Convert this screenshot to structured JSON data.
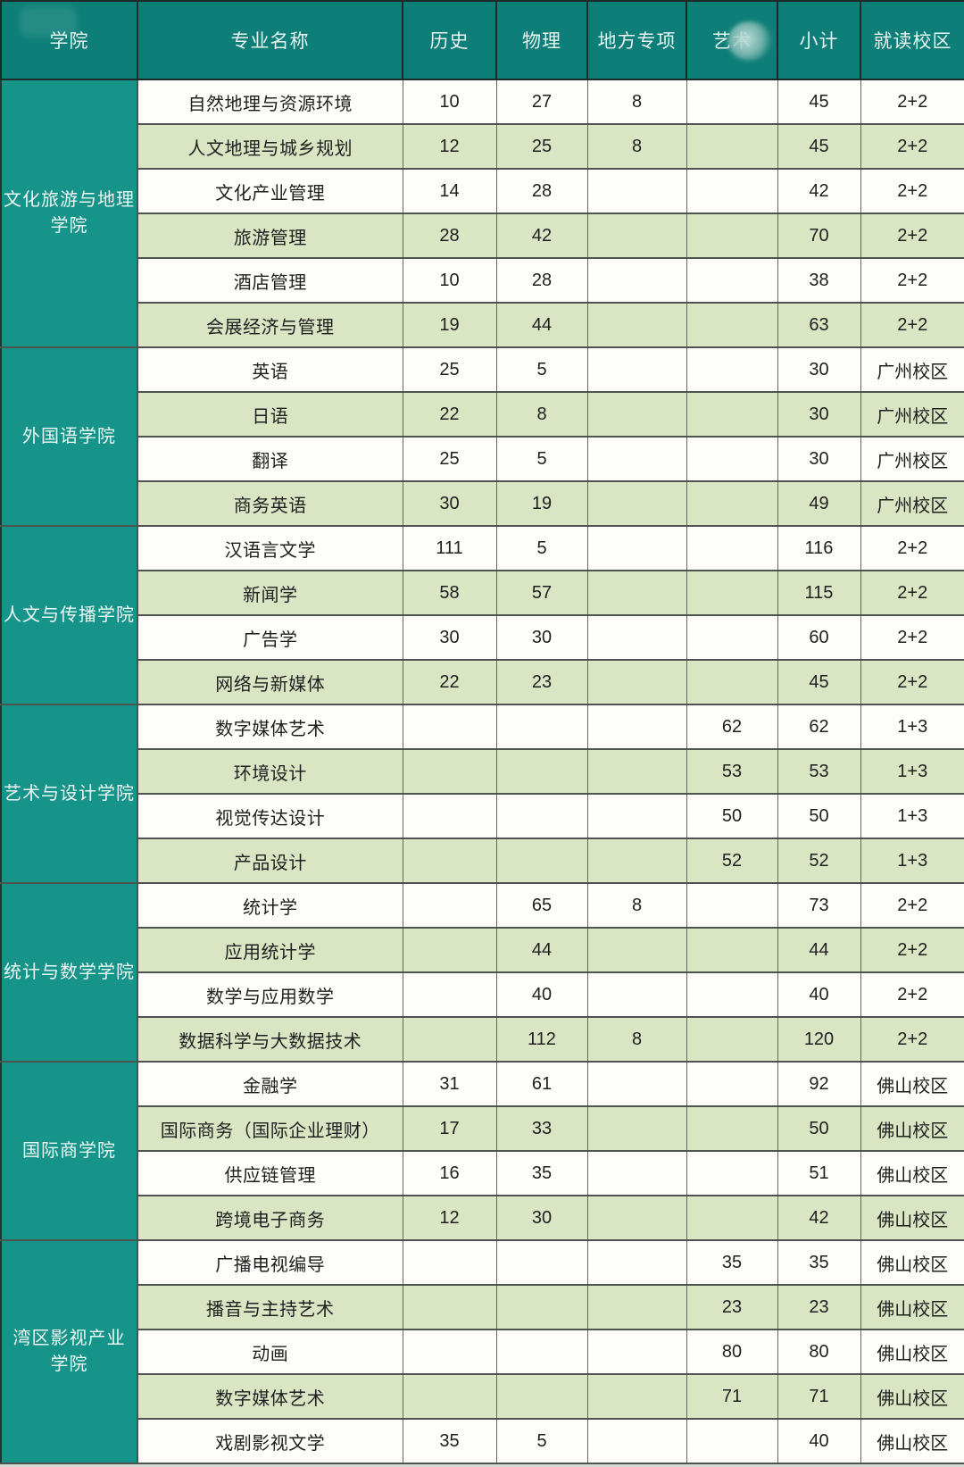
{
  "colors": {
    "header_teal": "#0d7f78",
    "college_teal": "#17948a",
    "row_green": "#dae5c3",
    "row_white": "#fdfdfb",
    "grid_line": "#4e534d",
    "text_dark": "#1f1f1f",
    "text_light": "#ecf8f3"
  },
  "table": {
    "columns": [
      {
        "key": "college",
        "label": "学院"
      },
      {
        "key": "major",
        "label": "专业名称"
      },
      {
        "key": "history",
        "label": "历史"
      },
      {
        "key": "physics",
        "label": "物理"
      },
      {
        "key": "local_program",
        "label": "地方专项"
      },
      {
        "key": "art",
        "label": "艺术",
        "partially_blurred": true
      },
      {
        "key": "subtotal",
        "label": "小计"
      },
      {
        "key": "campus",
        "label": "就读校区"
      }
    ],
    "college_groups": [
      {
        "college": "文化旅游与地理\n学院",
        "majors": [
          {
            "major": "自然地理与资源环境",
            "history": "10",
            "physics": "27",
            "local_program": "8",
            "art": "",
            "subtotal": "45",
            "campus": "2+2"
          },
          {
            "major": "人文地理与城乡规划",
            "history": "12",
            "physics": "25",
            "local_program": "8",
            "art": "",
            "subtotal": "45",
            "campus": "2+2"
          },
          {
            "major": "文化产业管理",
            "history": "14",
            "physics": "28",
            "local_program": "",
            "art": "",
            "subtotal": "42",
            "campus": "2+2"
          },
          {
            "major": "旅游管理",
            "history": "28",
            "physics": "42",
            "local_program": "",
            "art": "",
            "subtotal": "70",
            "campus": "2+2"
          },
          {
            "major": "酒店管理",
            "history": "10",
            "physics": "28",
            "local_program": "",
            "art": "",
            "subtotal": "38",
            "campus": "2+2"
          },
          {
            "major": "会展经济与管理",
            "history": "19",
            "physics": "44",
            "local_program": "",
            "art": "",
            "subtotal": "63",
            "campus": "2+2"
          }
        ]
      },
      {
        "college": "外国语学院",
        "majors": [
          {
            "major": "英语",
            "history": "25",
            "physics": "5",
            "local_program": "",
            "art": "",
            "subtotal": "30",
            "campus": "广州校区"
          },
          {
            "major": "日语",
            "history": "22",
            "physics": "8",
            "local_program": "",
            "art": "",
            "subtotal": "30",
            "campus": "广州校区"
          },
          {
            "major": "翻译",
            "history": "25",
            "physics": "5",
            "local_program": "",
            "art": "",
            "subtotal": "30",
            "campus": "广州校区"
          },
          {
            "major": "商务英语",
            "history": "30",
            "physics": "19",
            "local_program": "",
            "art": "",
            "subtotal": "49",
            "campus": "广州校区"
          }
        ]
      },
      {
        "college": "人文与传播学院",
        "majors": [
          {
            "major": "汉语言文学",
            "history": "111",
            "physics": "5",
            "local_program": "",
            "art": "",
            "subtotal": "116",
            "campus": "2+2"
          },
          {
            "major": "新闻学",
            "history": "58",
            "physics": "57",
            "local_program": "",
            "art": "",
            "subtotal": "115",
            "campus": "2+2"
          },
          {
            "major": "广告学",
            "history": "30",
            "physics": "30",
            "local_program": "",
            "art": "",
            "subtotal": "60",
            "campus": "2+2"
          },
          {
            "major": "网络与新媒体",
            "history": "22",
            "physics": "23",
            "local_program": "",
            "art": "",
            "subtotal": "45",
            "campus": "2+2"
          }
        ]
      },
      {
        "college": "艺术与设计学院",
        "majors": [
          {
            "major": "数字媒体艺术",
            "history": "",
            "physics": "",
            "local_program": "",
            "art": "62",
            "subtotal": "62",
            "campus": "1+3"
          },
          {
            "major": "环境设计",
            "history": "",
            "physics": "",
            "local_program": "",
            "art": "53",
            "subtotal": "53",
            "campus": "1+3"
          },
          {
            "major": "视觉传达设计",
            "history": "",
            "physics": "",
            "local_program": "",
            "art": "50",
            "subtotal": "50",
            "campus": "1+3"
          },
          {
            "major": "产品设计",
            "history": "",
            "physics": "",
            "local_program": "",
            "art": "52",
            "subtotal": "52",
            "campus": "1+3"
          }
        ]
      },
      {
        "college": "统计与数学学院",
        "majors": [
          {
            "major": "统计学",
            "history": "",
            "physics": "65",
            "local_program": "8",
            "art": "",
            "subtotal": "73",
            "campus": "2+2"
          },
          {
            "major": "应用统计学",
            "history": "",
            "physics": "44",
            "local_program": "",
            "art": "",
            "subtotal": "44",
            "campus": "2+2"
          },
          {
            "major": "数学与应用数学",
            "history": "",
            "physics": "40",
            "local_program": "",
            "art": "",
            "subtotal": "40",
            "campus": "2+2"
          },
          {
            "major": "数据科学与大数据技术",
            "history": "",
            "physics": "112",
            "local_program": "8",
            "art": "",
            "subtotal": "120",
            "campus": "2+2"
          }
        ]
      },
      {
        "college": "国际商学院",
        "majors": [
          {
            "major": "金融学",
            "history": "31",
            "physics": "61",
            "local_program": "",
            "art": "",
            "subtotal": "92",
            "campus": "佛山校区"
          },
          {
            "major": "国际商务（国际企业理财）",
            "history": "17",
            "physics": "33",
            "local_program": "",
            "art": "",
            "subtotal": "50",
            "campus": "佛山校区"
          },
          {
            "major": "供应链管理",
            "history": "16",
            "physics": "35",
            "local_program": "",
            "art": "",
            "subtotal": "51",
            "campus": "佛山校区"
          },
          {
            "major": "跨境电子商务",
            "history": "12",
            "physics": "30",
            "local_program": "",
            "art": "",
            "subtotal": "42",
            "campus": "佛山校区"
          }
        ]
      },
      {
        "college": "湾区影视产业\n学院",
        "majors": [
          {
            "major": "广播电视编导",
            "history": "",
            "physics": "",
            "local_program": "",
            "art": "35",
            "subtotal": "35",
            "campus": "佛山校区"
          },
          {
            "major": "播音与主持艺术",
            "history": "",
            "physics": "",
            "local_program": "",
            "art": "23",
            "subtotal": "23",
            "campus": "佛山校区"
          },
          {
            "major": "动画",
            "history": "",
            "physics": "",
            "local_program": "",
            "art": "80",
            "subtotal": "80",
            "campus": "佛山校区"
          },
          {
            "major": "数字媒体艺术",
            "history": "",
            "physics": "",
            "local_program": "",
            "art": "71",
            "subtotal": "71",
            "campus": "佛山校区"
          },
          {
            "major": "戏剧影视文学",
            "history": "35",
            "physics": "5",
            "local_program": "",
            "art": "",
            "subtotal": "40",
            "campus": "佛山校区"
          }
        ]
      }
    ]
  }
}
